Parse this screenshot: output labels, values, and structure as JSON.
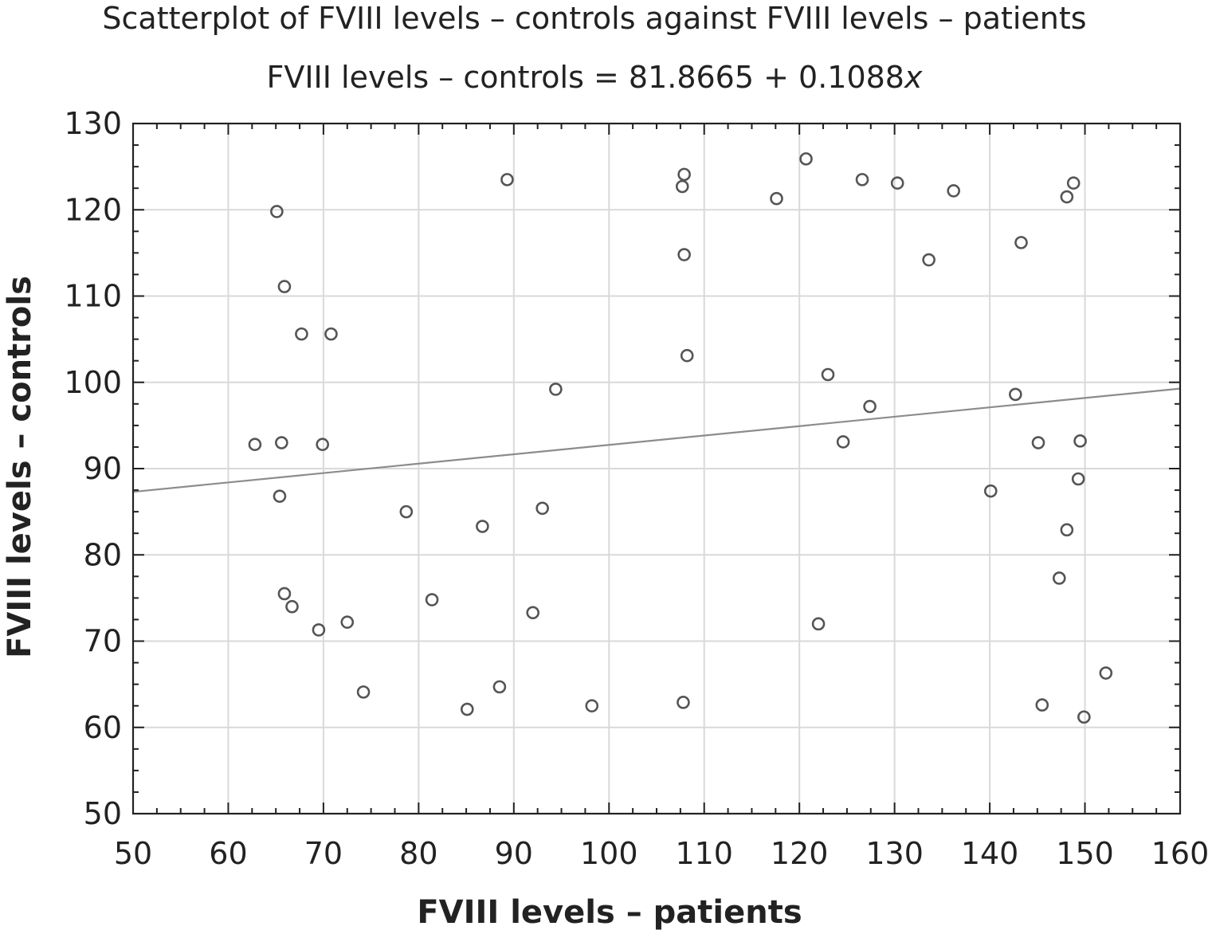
{
  "chart_data": {
    "type": "scatter",
    "title": "Scatterplot of FVIII levels – controls against FVIII levels – patients",
    "subtitle": "FVIII levels – controls = 81.8665 + 0.1088x",
    "xlabel": "FVIII levels – patients",
    "ylabel": "FVIII levels – controls",
    "xlim": [
      50,
      160
    ],
    "ylim": [
      50,
      130
    ],
    "xticks": [
      50,
      60,
      70,
      80,
      90,
      100,
      110,
      120,
      130,
      140,
      150,
      160
    ],
    "yticks": [
      50,
      60,
      70,
      80,
      90,
      100,
      110,
      120,
      130
    ],
    "grid": true,
    "regression": {
      "intercept": 81.8665,
      "slope": 0.1088
    },
    "colors": {
      "points": "#555555",
      "fit_line": "#8c8c8c",
      "grid": "#d9d9d9",
      "frame": "#222222"
    },
    "points": [
      {
        "x": 62.8,
        "y": 92.8
      },
      {
        "x": 65.1,
        "y": 119.8
      },
      {
        "x": 65.4,
        "y": 86.8
      },
      {
        "x": 65.6,
        "y": 93.0
      },
      {
        "x": 65.9,
        "y": 75.5
      },
      {
        "x": 65.9,
        "y": 111.1
      },
      {
        "x": 66.7,
        "y": 74.0
      },
      {
        "x": 67.7,
        "y": 105.6
      },
      {
        "x": 69.5,
        "y": 71.3
      },
      {
        "x": 69.9,
        "y": 92.8
      },
      {
        "x": 70.8,
        "y": 105.6
      },
      {
        "x": 72.5,
        "y": 72.2
      },
      {
        "x": 74.2,
        "y": 64.1
      },
      {
        "x": 78.7,
        "y": 85.0
      },
      {
        "x": 81.4,
        "y": 74.8
      },
      {
        "x": 85.1,
        "y": 62.1
      },
      {
        "x": 86.7,
        "y": 83.3
      },
      {
        "x": 88.5,
        "y": 64.7
      },
      {
        "x": 89.3,
        "y": 123.5
      },
      {
        "x": 92.0,
        "y": 73.3
      },
      {
        "x": 93.0,
        "y": 85.4
      },
      {
        "x": 94.4,
        "y": 99.2
      },
      {
        "x": 98.2,
        "y": 62.5
      },
      {
        "x": 107.7,
        "y": 122.7
      },
      {
        "x": 107.8,
        "y": 62.9
      },
      {
        "x": 107.9,
        "y": 124.1
      },
      {
        "x": 107.9,
        "y": 114.8
      },
      {
        "x": 108.2,
        "y": 103.1
      },
      {
        "x": 117.6,
        "y": 121.3
      },
      {
        "x": 120.7,
        "y": 125.9
      },
      {
        "x": 122.0,
        "y": 72.0
      },
      {
        "x": 123.0,
        "y": 100.9
      },
      {
        "x": 124.6,
        "y": 93.1
      },
      {
        "x": 126.6,
        "y": 123.5
      },
      {
        "x": 127.4,
        "y": 97.2
      },
      {
        "x": 130.3,
        "y": 123.1
      },
      {
        "x": 133.6,
        "y": 114.2
      },
      {
        "x": 136.2,
        "y": 122.2
      },
      {
        "x": 140.1,
        "y": 87.4
      },
      {
        "x": 142.7,
        "y": 98.6
      },
      {
        "x": 143.3,
        "y": 116.2
      },
      {
        "x": 145.1,
        "y": 93.0
      },
      {
        "x": 145.5,
        "y": 62.6
      },
      {
        "x": 147.3,
        "y": 77.3
      },
      {
        "x": 148.1,
        "y": 121.5
      },
      {
        "x": 148.1,
        "y": 82.9
      },
      {
        "x": 148.8,
        "y": 123.1
      },
      {
        "x": 149.3,
        "y": 88.8
      },
      {
        "x": 149.5,
        "y": 93.2
      },
      {
        "x": 149.9,
        "y": 61.2
      },
      {
        "x": 152.2,
        "y": 66.3
      }
    ]
  }
}
